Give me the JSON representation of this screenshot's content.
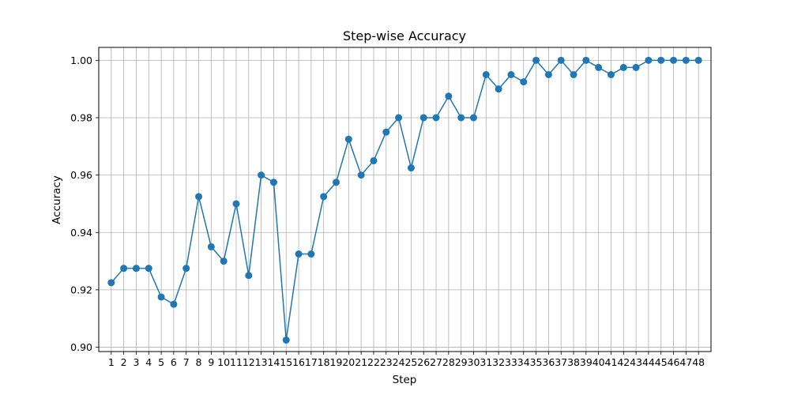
{
  "chart_data": {
    "type": "line",
    "title": "Step-wise Accuracy",
    "xlabel": "Step",
    "ylabel": "Accuracy",
    "x": [
      1,
      2,
      3,
      4,
      5,
      6,
      7,
      8,
      9,
      10,
      11,
      12,
      13,
      14,
      15,
      16,
      17,
      18,
      19,
      20,
      21,
      22,
      23,
      24,
      25,
      26,
      27,
      28,
      29,
      30,
      31,
      32,
      33,
      34,
      35,
      36,
      37,
      38,
      39,
      40,
      41,
      42,
      43,
      44,
      45,
      46,
      47,
      48
    ],
    "values": [
      0.9225,
      0.9275,
      0.9275,
      0.9275,
      0.9175,
      0.915,
      0.9275,
      0.9525,
      0.935,
      0.93,
      0.95,
      0.925,
      0.96,
      0.9575,
      0.9025,
      0.9325,
      0.9325,
      0.9525,
      0.9575,
      0.9725,
      0.96,
      0.965,
      0.975,
      0.98,
      0.9625,
      0.98,
      0.98,
      0.9875,
      0.98,
      0.98,
      0.995,
      0.99,
      0.995,
      0.9925,
      1.0,
      0.995,
      1.0,
      0.995,
      1.0,
      0.9975,
      0.995,
      0.9975,
      0.9975,
      1.0,
      1.0,
      1.0,
      1.0,
      1.0
    ],
    "yticks": [
      "0.90",
      "0.92",
      "0.94",
      "0.96",
      "0.98",
      "1.00"
    ],
    "ylim": [
      0.8985,
      1.0045
    ],
    "xlim": [
      0,
      49
    ],
    "grid": true,
    "marker": "circle",
    "color": "#1f77b4"
  }
}
